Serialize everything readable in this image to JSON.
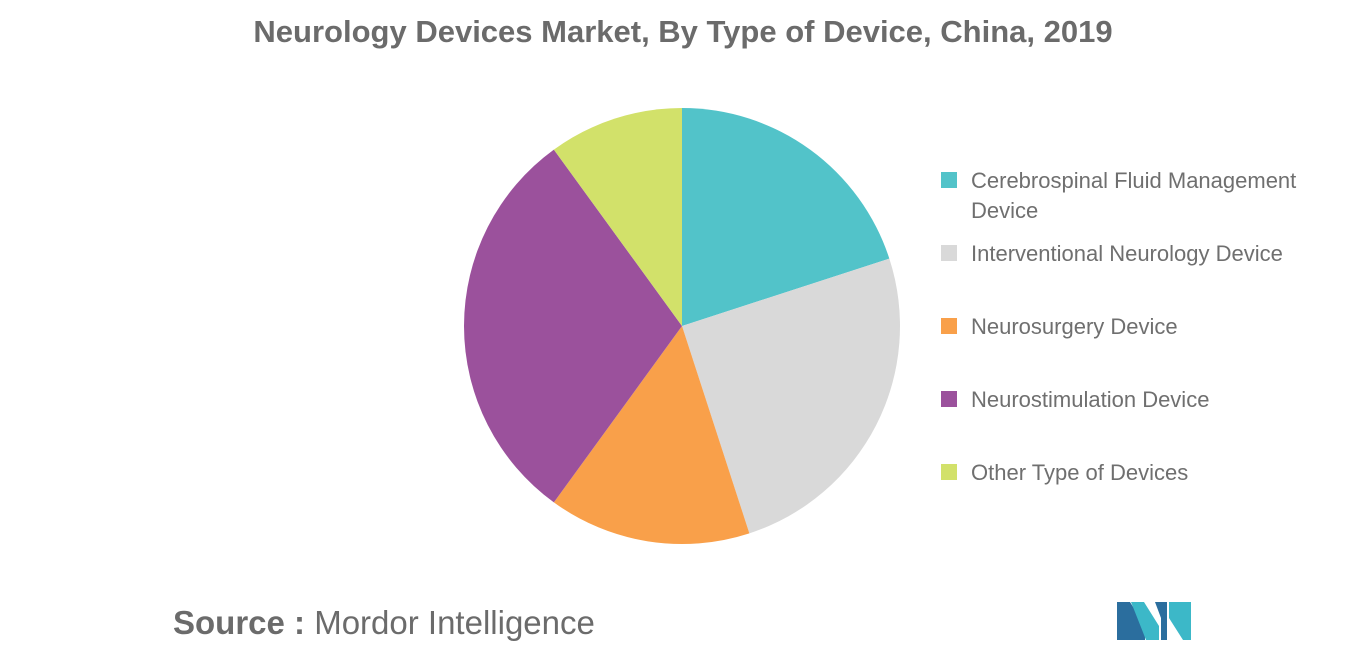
{
  "chart_data": {
    "type": "pie",
    "title": "Neurology Devices Market, By Type of Device, China, 2019",
    "slices": [
      {
        "label": "Cerebrospinal Fluid Management Device",
        "value": 20,
        "color": "#52c3c9"
      },
      {
        "label": "Interventional Neurology Device",
        "value": 25,
        "color": "#d9d9d9"
      },
      {
        "label": "Neurosurgery Device",
        "value": 15,
        "color": "#f9a04a"
      },
      {
        "label": "Neurostimulation Device",
        "value": 30,
        "color": "#9b519c"
      },
      {
        "label": "Other Type of Devices",
        "value": 10,
        "color": "#d2e16a"
      }
    ],
    "legend_position": "right",
    "start_angle": "12 o'clock",
    "direction": "clockwise"
  },
  "source": {
    "label": "Source :",
    "text": "Mordor Intelligence"
  },
  "logo": {
    "icon": "mordor-intelligence-logo",
    "colors": [
      "#2b6e9e",
      "#3cb8c8"
    ]
  }
}
